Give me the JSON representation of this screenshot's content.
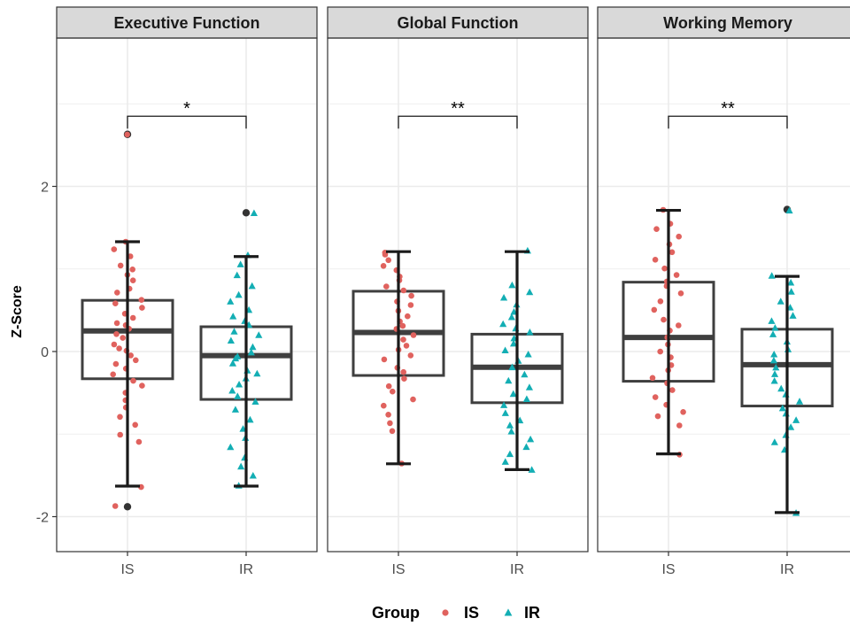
{
  "chart_data": {
    "type": "box",
    "ylabel": "Z-Score",
    "ylim": [
      -2.4,
      3.8
    ],
    "yticks": [
      -2,
      0,
      2
    ],
    "categories": [
      "IS",
      "IR"
    ],
    "legend": {
      "title": "Group",
      "position": "bottom",
      "entries": [
        {
          "label": "IS",
          "shape": "circle",
          "color": "#e0625e"
        },
        {
          "label": "IR",
          "shape": "triangle",
          "color": "#13aeb4"
        }
      ]
    },
    "colors": {
      "IS": "#e0625e",
      "IR": "#13aeb4",
      "box": "#3f3f3f",
      "whisker": "#1a1a1a",
      "outlier": "#333333",
      "strip": "#d9d9d9",
      "grid": "#ebebeb"
    },
    "panels": [
      {
        "title": "Executive Function",
        "significance": "*",
        "bracket_y": 2.85,
        "groups": [
          {
            "name": "IS",
            "q1": -0.33,
            "median": 0.25,
            "q3": 0.62,
            "whisker_low": -1.63,
            "whisker_high": 1.33,
            "outliers": [
              2.63,
              -1.88
            ],
            "points": [
              2.63,
              -1.88,
              1.33,
              1.25,
              1.15,
              1.05,
              0.98,
              0.92,
              0.85,
              0.76,
              0.7,
              0.64,
              0.58,
              0.52,
              0.46,
              0.4,
              0.36,
              0.31,
              0.27,
              0.22,
              0.16,
              0.1,
              0.05,
              0.0,
              -0.05,
              -0.1,
              -0.16,
              -0.22,
              -0.28,
              -0.35,
              -0.42,
              -0.5,
              -0.58,
              -0.68,
              -0.8,
              -0.9,
              -1.0,
              -1.08,
              -1.63
            ]
          },
          {
            "name": "IR",
            "q1": -0.58,
            "median": -0.05,
            "q3": 0.3,
            "whisker_low": -1.63,
            "whisker_high": 1.15,
            "outliers": [
              1.68
            ],
            "points": [
              1.68,
              1.15,
              1.05,
              0.92,
              0.8,
              0.7,
              0.6,
              0.5,
              0.44,
              0.38,
              0.32,
              0.25,
              0.19,
              0.12,
              0.06,
              0.0,
              -0.05,
              -0.1,
              -0.16,
              -0.22,
              -0.28,
              -0.34,
              -0.4,
              -0.48,
              -0.55,
              -0.62,
              -0.72,
              -0.84,
              -0.95,
              -1.05,
              -1.15,
              -1.28,
              -1.38,
              -1.5,
              -1.63
            ]
          }
        ]
      },
      {
        "title": "Global Function",
        "significance": "**",
        "bracket_y": 2.85,
        "groups": [
          {
            "name": "IS",
            "q1": -0.29,
            "median": 0.23,
            "q3": 0.73,
            "whisker_low": -1.36,
            "whisker_high": 1.21,
            "outliers": [],
            "points": [
              1.21,
              1.16,
              1.1,
              1.04,
              0.98,
              0.92,
              0.86,
              0.8,
              0.74,
              0.68,
              0.62,
              0.56,
              0.5,
              0.44,
              0.38,
              0.32,
              0.26,
              0.2,
              0.14,
              0.08,
              0.02,
              -0.04,
              -0.1,
              -0.18,
              -0.26,
              -0.34,
              -0.42,
              -0.5,
              -0.58,
              -0.66,
              -0.76,
              -0.86,
              -0.95,
              -1.36
            ]
          },
          {
            "name": "IR",
            "q1": -0.62,
            "median": -0.19,
            "q3": 0.21,
            "whisker_low": -1.43,
            "whisker_high": 1.21,
            "outliers": [],
            "points": [
              1.21,
              0.8,
              0.72,
              0.64,
              0.56,
              0.48,
              0.4,
              0.34,
              0.28,
              0.22,
              0.15,
              0.08,
              0.02,
              -0.05,
              -0.12,
              -0.2,
              -0.28,
              -0.35,
              -0.42,
              -0.5,
              -0.58,
              -0.66,
              -0.74,
              -0.82,
              -0.9,
              -0.98,
              -1.06,
              -1.15,
              -1.24,
              -1.33,
              -1.43
            ]
          }
        ]
      },
      {
        "title": "Working Memory",
        "significance": "**",
        "bracket_y": 2.85,
        "groups": [
          {
            "name": "IS",
            "q1": -0.36,
            "median": 0.17,
            "q3": 0.84,
            "whisker_low": -1.24,
            "whisker_high": 1.71,
            "outliers": [],
            "points": [
              1.71,
              1.55,
              1.48,
              1.4,
              1.3,
              1.2,
              1.1,
              1.02,
              0.94,
              0.86,
              0.78,
              0.7,
              0.6,
              0.5,
              0.4,
              0.32,
              0.24,
              0.16,
              0.08,
              0.0,
              -0.08,
              -0.16,
              -0.24,
              -0.32,
              -0.4,
              -0.48,
              -0.56,
              -0.64,
              -0.72,
              -0.8,
              -0.88,
              -1.24
            ]
          },
          {
            "name": "IR",
            "q1": -0.66,
            "median": -0.16,
            "q3": 0.27,
            "whisker_low": -1.95,
            "whisker_high": 0.91,
            "outliers": [
              1.72
            ],
            "points": [
              1.72,
              0.91,
              0.82,
              0.72,
              0.62,
              0.52,
              0.44,
              0.36,
              0.28,
              0.2,
              0.12,
              0.04,
              -0.04,
              -0.12,
              -0.2,
              -0.28,
              -0.36,
              -0.44,
              -0.52,
              -0.6,
              -0.68,
              -0.76,
              -0.84,
              -0.92,
              -1.0,
              -1.1,
              -1.2,
              -1.95
            ]
          }
        ]
      }
    ]
  }
}
